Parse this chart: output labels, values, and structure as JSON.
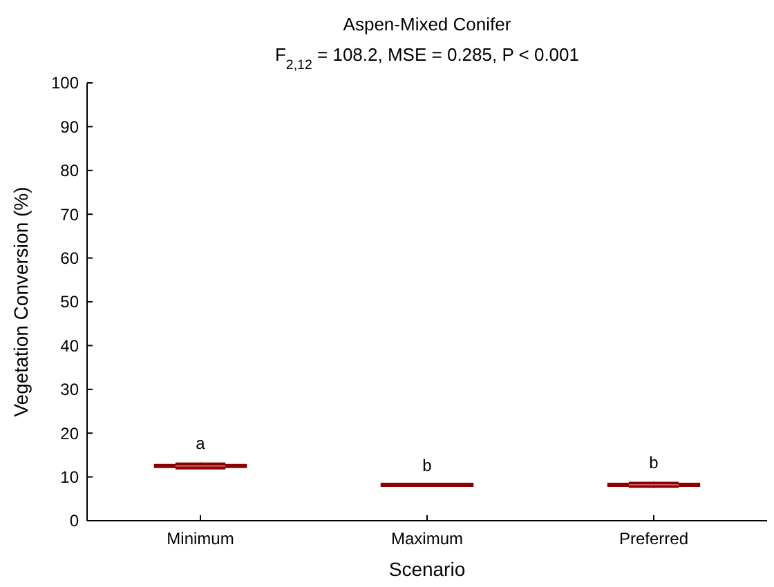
{
  "chart_data": {
    "type": "box",
    "title": "Aspen-Mixed Conifer",
    "subtitle": "F$_{2,12}$ = 108.2, MSE = 0.285, P < 0.001",
    "xlabel": "Scenario",
    "ylabel": "Vegetation Conversion (%)",
    "categories": [
      "Minimum",
      "Maximum",
      "Preferred"
    ],
    "color": "#8b0000",
    "boxes": [
      {
        "low": 11.7,
        "q1": 11.7,
        "median": 12.5,
        "q3": 13.3,
        "high": 13.3
      },
      {
        "low": 8.2,
        "q1": 8.2,
        "median": 8.2,
        "q3": 8.2,
        "high": 8.2
      },
      {
        "low": 7.5,
        "q1": 7.5,
        "median": 8.2,
        "q3": 8.9,
        "high": 8.9
      }
    ],
    "annotations": [
      "a",
      "b",
      "b"
    ],
    "ylim": [
      0,
      100
    ],
    "yticks": [
      0,
      10,
      20,
      30,
      40,
      50,
      60,
      70,
      80,
      90,
      100
    ],
    "grid": false
  }
}
